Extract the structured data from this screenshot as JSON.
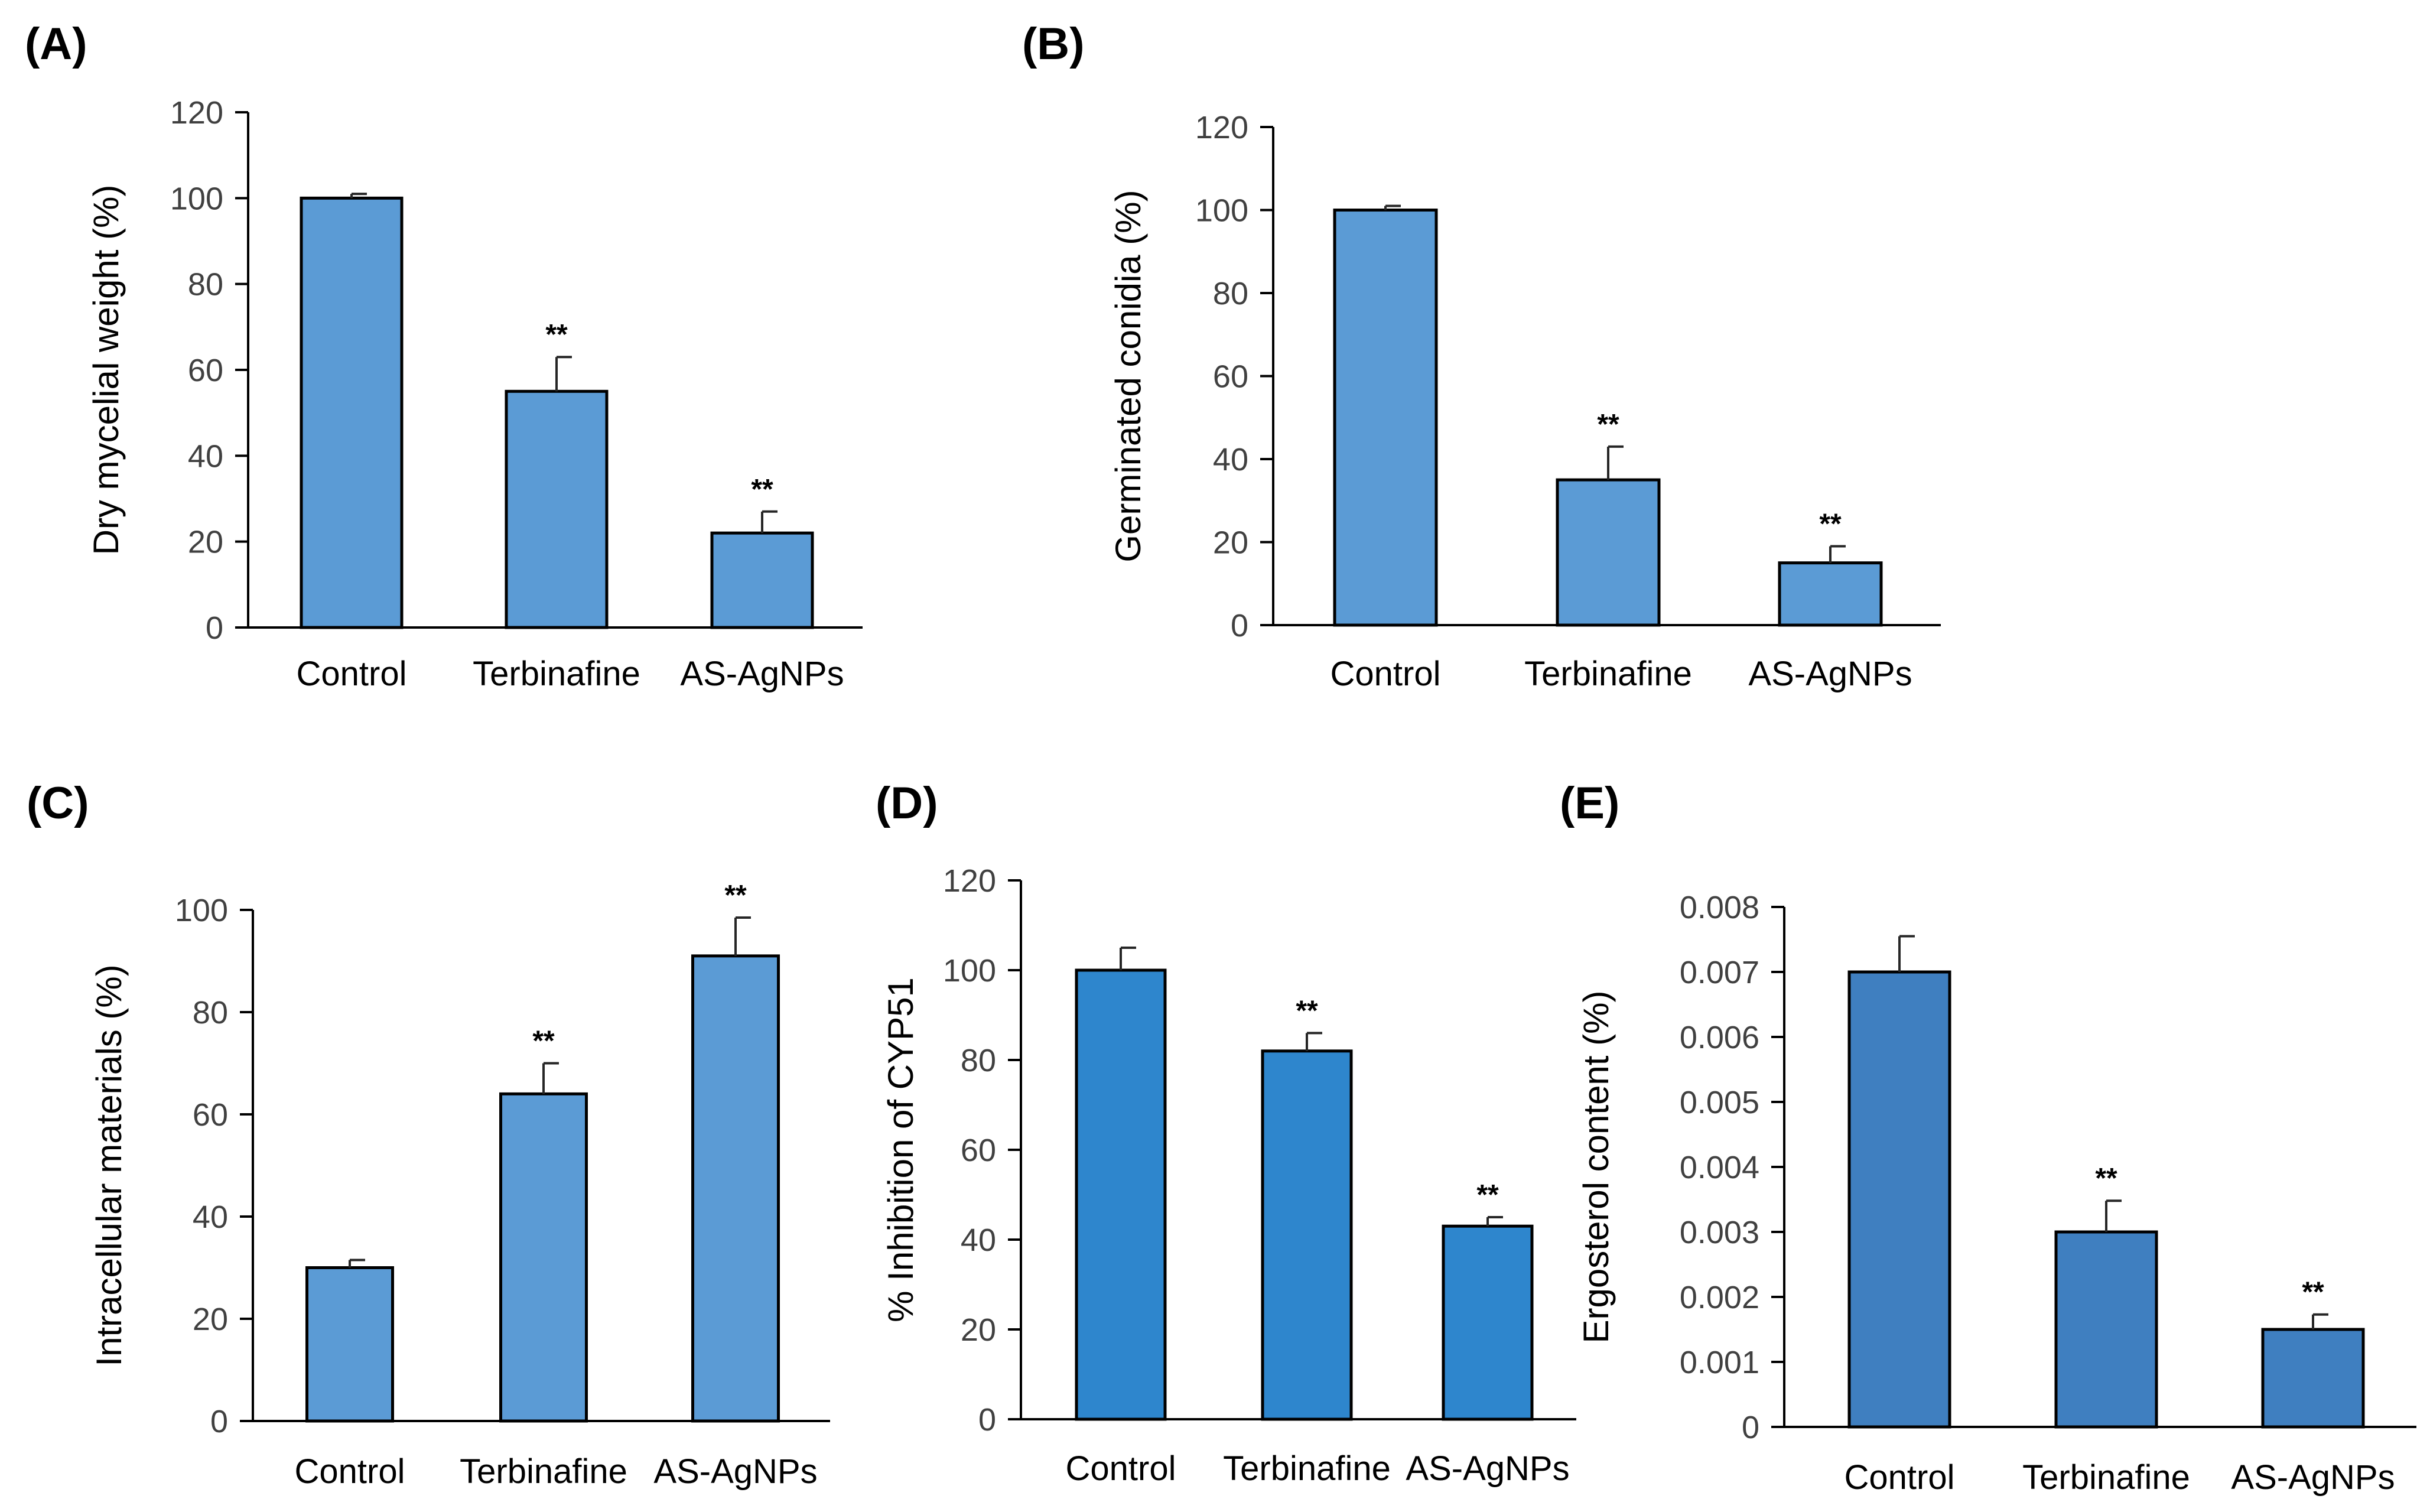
{
  "chart_data": [
    {
      "panel": "(A)",
      "type": "bar",
      "ylabel": "Dry mycelial weight (%)",
      "categories": [
        "Control",
        "Terbinafine",
        "AS-AgNPs"
      ],
      "values": [
        100,
        55,
        22
      ],
      "errors": [
        1,
        8,
        5
      ],
      "significance": [
        "",
        "**",
        "**"
      ],
      "ylim": [
        0,
        120
      ],
      "yticks": [
        0,
        20,
        40,
        60,
        80,
        100,
        120
      ],
      "ytick_labels": [
        "0",
        "20",
        "40",
        "60",
        "80",
        "100",
        "120"
      ],
      "bar_color": "#5b9bd5",
      "grid": false
    },
    {
      "panel": "(B)",
      "type": "bar",
      "ylabel": "Germinated conidia (%)",
      "categories": [
        "Control",
        "Terbinafine",
        "AS-AgNPs"
      ],
      "values": [
        100,
        35,
        15
      ],
      "errors": [
        1,
        8,
        4
      ],
      "significance": [
        "",
        "**",
        "**"
      ],
      "ylim": [
        0,
        120
      ],
      "yticks": [
        0,
        20,
        40,
        60,
        80,
        100,
        120
      ],
      "ytick_labels": [
        "0",
        "20",
        "40",
        "60",
        "80",
        "100",
        "120"
      ],
      "bar_color": "#5b9bd5",
      "grid": false
    },
    {
      "panel": "(C)",
      "type": "bar",
      "ylabel": "Intracellular materials (%)",
      "categories": [
        "Control",
        "Terbinafine",
        "AS-AgNPs"
      ],
      "values": [
        30,
        64,
        91
      ],
      "errors": [
        1.5,
        6,
        7.5
      ],
      "significance": [
        "",
        "**",
        "**"
      ],
      "ylim": [
        0,
        100
      ],
      "yticks": [
        0,
        20,
        40,
        60,
        80,
        100
      ],
      "ytick_labels": [
        "0",
        "20",
        "40",
        "60",
        "80",
        "100"
      ],
      "bar_color": "#5b9bd5",
      "grid": false
    },
    {
      "panel": "(D)",
      "type": "bar",
      "ylabel": "% Inhibition of CYP51",
      "categories": [
        "Control",
        "Terbinafine",
        "AS-AgNPs"
      ],
      "values": [
        100,
        82,
        43
      ],
      "errors": [
        5,
        4,
        2
      ],
      "significance": [
        "",
        "**",
        "**"
      ],
      "ylim": [
        0,
        120
      ],
      "yticks": [
        0,
        20,
        40,
        60,
        80,
        100,
        120
      ],
      "ytick_labels": [
        "0",
        "20",
        "40",
        "60",
        "80",
        "100",
        "120"
      ],
      "bar_color": "#2e86cd",
      "grid": false
    },
    {
      "panel": "(E)",
      "type": "bar",
      "ylabel": "Ergosterol content (%)",
      "categories": [
        "Control",
        "Terbinafine",
        "AS-AgNPs"
      ],
      "values": [
        0.007,
        0.003,
        0.0015
      ],
      "errors": [
        0.00055,
        0.00048,
        0.00023
      ],
      "significance": [
        "",
        "**",
        "**"
      ],
      "ylim": [
        0,
        0.008
      ],
      "yticks": [
        0,
        0.001,
        0.002,
        0.003,
        0.004,
        0.005,
        0.006,
        0.007,
        0.008
      ],
      "ytick_labels": [
        "0",
        "0.001",
        "0.002",
        "0.003",
        "0.004",
        "0.005",
        "0.006",
        "0.007",
        "0.008"
      ],
      "bar_color": "#3f7fc0",
      "grid": false
    }
  ]
}
